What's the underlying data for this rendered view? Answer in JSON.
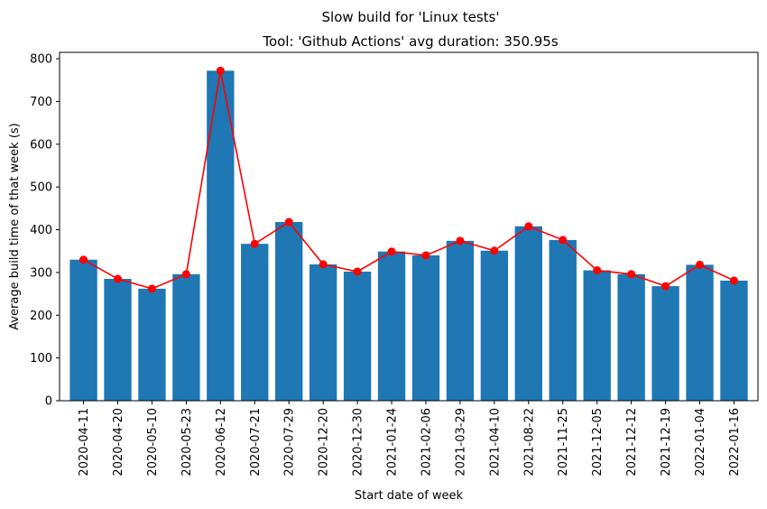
{
  "chart_data": {
    "type": "bar",
    "suptitle": "Slow build for 'Linux tests'",
    "title": "Tool: 'Github Actions' avg duration: 350.95s",
    "xlabel": "Start date of week",
    "ylabel": "Average build time of that week (s)",
    "ylim": [
      0,
      815
    ],
    "yticks": [
      0,
      100,
      200,
      300,
      400,
      500,
      600,
      700,
      800
    ],
    "categories": [
      "2020-04-11",
      "2020-04-20",
      "2020-05-10",
      "2020-05-23",
      "2020-06-12",
      "2020-07-21",
      "2020-07-29",
      "2020-12-20",
      "2020-12-30",
      "2021-01-24",
      "2021-02-06",
      "2021-03-29",
      "2021-04-10",
      "2021-08-22",
      "2021-11-25",
      "2021-12-05",
      "2021-12-12",
      "2021-12-19",
      "2022-01-04",
      "2022-01-16"
    ],
    "series": [
      {
        "type": "bar",
        "values": [
          330,
          285,
          262,
          296,
          772,
          367,
          418,
          319,
          302,
          349,
          340,
          374,
          351,
          408,
          376,
          305,
          296,
          268,
          318,
          281
        ]
      },
      {
        "type": "line",
        "values": [
          330,
          285,
          262,
          296,
          772,
          367,
          418,
          319,
          302,
          349,
          340,
          374,
          351,
          408,
          376,
          305,
          296,
          268,
          318,
          281
        ]
      }
    ],
    "colors": {
      "bar": "#1f77b4",
      "line": "#ff0000"
    },
    "grid": false,
    "legend": "none"
  }
}
